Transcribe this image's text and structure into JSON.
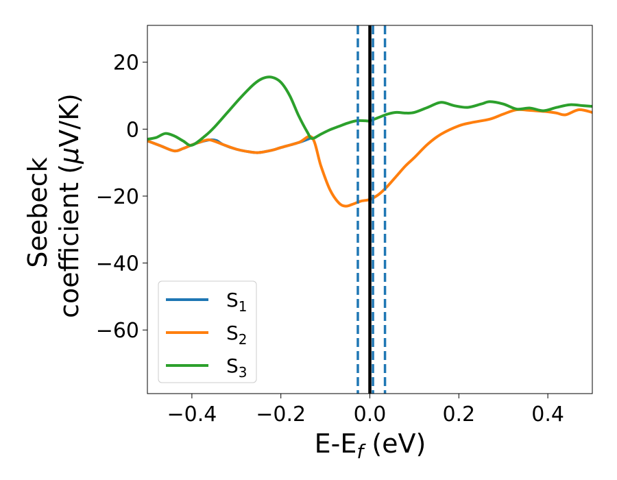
{
  "chart_data": {
    "type": "line",
    "xlabel": {
      "main": "E-E",
      "sub": "f",
      "tail": " (eV)"
    },
    "ylabel": {
      "line1": "Seebeck",
      "line2_pre": "coefficient  (",
      "line2_mu": "μ",
      "line2_post": "V/K)"
    },
    "xlim": [
      -0.5,
      0.5
    ],
    "ylim": [
      -79,
      31
    ],
    "xticks": [
      -0.4,
      -0.2,
      0.0,
      0.2,
      0.4
    ],
    "xtick_labels": [
      "−0.4",
      "−0.2",
      "0.0",
      "0.2",
      "0.4"
    ],
    "yticks": [
      20,
      0,
      -20,
      -40,
      -60
    ],
    "ytick_labels": [
      "20",
      "0",
      "−20",
      "−40",
      "−60"
    ],
    "grid": false,
    "legend_position": "lower-left",
    "vlines": [
      {
        "x": -0.027,
        "style": "dashed",
        "color": "#1f77b4"
      },
      {
        "x": 0.034,
        "style": "dashed",
        "color": "#1f77b4"
      },
      {
        "x": 0.007,
        "style": "dashed",
        "color": "#1f77b4"
      },
      {
        "x": 0.0,
        "style": "solid",
        "color": "#000000"
      }
    ],
    "series": [
      {
        "name": "S",
        "sub": "1",
        "color": "#1f77b4",
        "x": [
          -0.5,
          -0.47,
          -0.44,
          -0.42,
          -0.4,
          -0.38,
          -0.36,
          -0.345,
          -0.33,
          -0.3,
          -0.27,
          -0.25,
          -0.22,
          -0.2,
          -0.16,
          -0.13
        ],
        "y": [
          -3.5,
          -5,
          -6.5,
          -5.8,
          -4.7,
          -3.8,
          -3.2,
          -3.4,
          -4.6,
          -6,
          -6.8,
          -7,
          -6.3,
          -5.5,
          -4,
          -2.5
        ]
      },
      {
        "name": "S",
        "sub": "2",
        "color": "#ff7f0e",
        "x": [
          -0.5,
          -0.47,
          -0.44,
          -0.42,
          -0.4,
          -0.38,
          -0.36,
          -0.33,
          -0.3,
          -0.27,
          -0.25,
          -0.22,
          -0.2,
          -0.16,
          -0.13,
          -0.11,
          -0.09,
          -0.07,
          -0.055,
          -0.04,
          -0.02,
          0.0,
          0.02,
          0.04,
          0.06,
          0.08,
          0.1,
          0.13,
          0.16,
          0.2,
          0.23,
          0.27,
          0.3,
          0.33,
          0.36,
          0.4,
          0.42,
          0.44,
          0.47,
          0.5
        ],
        "y": [
          -3.5,
          -5,
          -6.5,
          -5.8,
          -4.7,
          -3.8,
          -3.2,
          -4.6,
          -6,
          -6.8,
          -7,
          -6.3,
          -5.5,
          -4,
          -2.5,
          -11,
          -18,
          -22,
          -23,
          -22.5,
          -21.5,
          -21,
          -19.5,
          -17,
          -14,
          -11,
          -8.5,
          -4.5,
          -1.5,
          1,
          2,
          3,
          4.5,
          5.8,
          5.6,
          5.2,
          4.8,
          4.3,
          5.8,
          5
        ]
      },
      {
        "name": "S",
        "sub": "3",
        "color": "#2ca02c",
        "x": [
          -0.5,
          -0.48,
          -0.46,
          -0.44,
          -0.42,
          -0.4,
          -0.37,
          -0.35,
          -0.32,
          -0.29,
          -0.26,
          -0.24,
          -0.22,
          -0.2,
          -0.18,
          -0.16,
          -0.14,
          -0.13,
          -0.11,
          -0.09,
          -0.07,
          -0.05,
          -0.03,
          -0.01,
          0.0,
          0.02,
          0.04,
          0.06,
          0.08,
          0.1,
          0.13,
          0.16,
          0.19,
          0.22,
          0.25,
          0.27,
          0.3,
          0.33,
          0.36,
          0.39,
          0.42,
          0.45,
          0.48,
          0.5
        ],
        "y": [
          -3,
          -2.5,
          -1.3,
          -2,
          -3.5,
          -4.8,
          -2,
          0.5,
          5,
          9.5,
          13.5,
          15.2,
          15.5,
          14,
          10,
          4,
          -1,
          -2.8,
          -1.5,
          -0.2,
          0.8,
          1.8,
          2.5,
          2.5,
          2.5,
          3.5,
          4.5,
          5,
          4.8,
          5,
          6.5,
          8,
          7,
          6.5,
          7.5,
          8.2,
          7.5,
          6,
          6.3,
          5.5,
          6.5,
          7.3,
          7,
          6.8
        ]
      }
    ]
  }
}
